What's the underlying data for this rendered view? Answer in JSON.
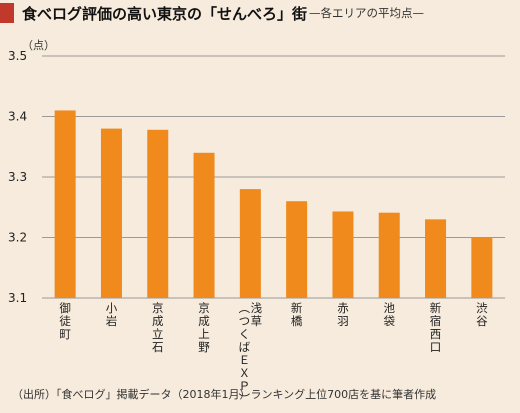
{
  "title": {
    "main": "食べログ評価の高い東京の「せんべろ」街",
    "sub": "—各エリアの平均点—"
  },
  "unit_label": "（点）",
  "footnote": "（出所）「食べログ」掲載データ（2018年1月）ランキング上位700店を基に筆者作成",
  "colors": {
    "bar": "#f08a1c",
    "background": "#f6ebdc",
    "title_marker": "#c0392b"
  },
  "chart_data": {
    "type": "bar",
    "categories": [
      "御徒町",
      "小岩",
      "京成立石",
      "京成上野",
      "浅草（つくばEXP）",
      "新橋",
      "赤羽",
      "池袋",
      "新宿西口",
      "渋谷"
    ],
    "category_lines": [
      [
        "御徒町"
      ],
      [
        "小岩"
      ],
      [
        "京成立石"
      ],
      [
        "京成上野"
      ],
      [
        "浅草",
        "（つくばＥＸＰ）"
      ],
      [
        "新橋"
      ],
      [
        "赤羽"
      ],
      [
        "池袋"
      ],
      [
        "新宿西口"
      ],
      [
        "渋谷"
      ]
    ],
    "values": [
      3.41,
      3.38,
      3.378,
      3.34,
      3.28,
      3.26,
      3.243,
      3.241,
      3.23,
      3.2
    ],
    "ylim": [
      3.1,
      3.5
    ],
    "yticks": [
      "3.1",
      "3.2",
      "3.3",
      "3.4",
      "3.5"
    ],
    "grid": true,
    "xlabel": "",
    "ylabel": ""
  }
}
